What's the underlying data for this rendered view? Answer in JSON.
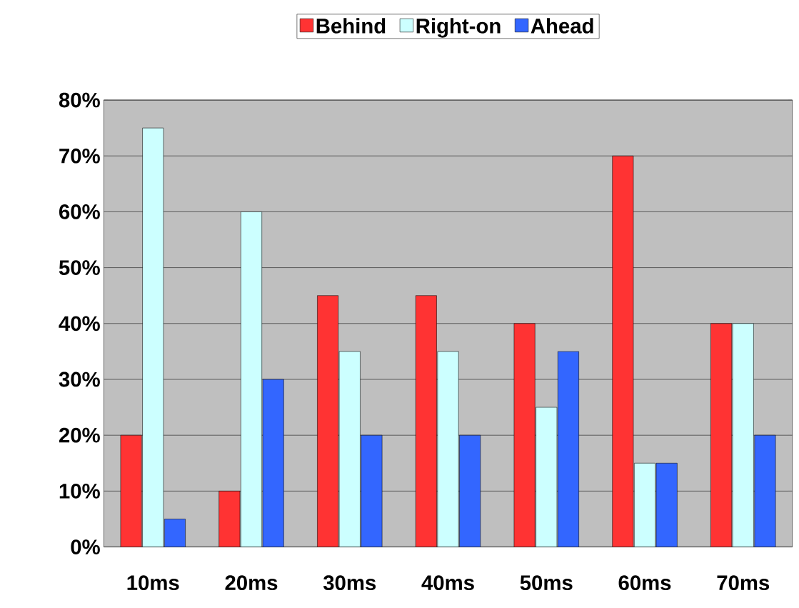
{
  "chart_data": {
    "type": "bar",
    "categories": [
      "10ms",
      "20ms",
      "30ms",
      "40ms",
      "50ms",
      "60ms",
      "70ms"
    ],
    "series": [
      {
        "name": "Behind",
        "color": "#ff3333",
        "values": [
          20,
          10,
          45,
          45,
          40,
          70,
          40
        ]
      },
      {
        "name": "Right-on",
        "color": "#ccffff",
        "values": [
          75,
          60,
          35,
          35,
          25,
          15,
          40
        ]
      },
      {
        "name": "Ahead",
        "color": "#3366ff",
        "values": [
          5,
          30,
          20,
          20,
          35,
          15,
          20
        ]
      }
    ],
    "ylim": [
      0,
      80
    ],
    "yticks": [
      {
        "value": 0,
        "label": "0%"
      },
      {
        "value": 10,
        "label": "10%"
      },
      {
        "value": 20,
        "label": "20%"
      },
      {
        "value": 30,
        "label": "30%"
      },
      {
        "value": 40,
        "label": "40%"
      },
      {
        "value": 50,
        "label": "50%"
      },
      {
        "value": 60,
        "label": "60%"
      },
      {
        "value": 70,
        "label": "70%"
      },
      {
        "value": 80,
        "label": "80%"
      }
    ],
    "grid": "y",
    "legend": "top"
  }
}
